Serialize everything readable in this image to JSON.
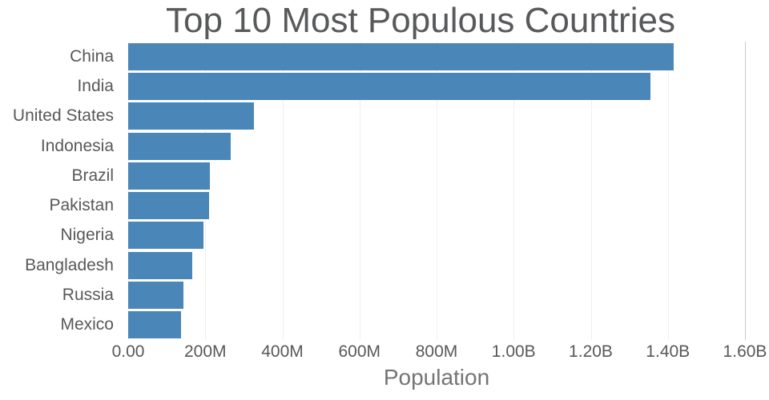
{
  "chart_data": {
    "type": "bar",
    "orientation": "horizontal",
    "title": "Top 10 Most Populous Countries",
    "xlabel": "Population",
    "ylabel": "",
    "xlim": [
      0,
      1600000000
    ],
    "x_tick_labels": [
      "0.00",
      "200M",
      "400M",
      "600M",
      "800M",
      "1.00B",
      "1.20B",
      "1.40B",
      "1.60B"
    ],
    "x_tick_values": [
      0,
      200000000,
      400000000,
      600000000,
      800000000,
      1000000000,
      1200000000,
      1400000000,
      1600000000
    ],
    "categories": [
      "China",
      "India",
      "United States",
      "Indonesia",
      "Brazil",
      "Pakistan",
      "Nigeria",
      "Bangladesh",
      "Russia",
      "Mexico"
    ],
    "values": [
      1415000000,
      1354000000,
      327000000,
      267000000,
      211000000,
      209000000,
      196000000,
      166000000,
      144000000,
      137000000
    ],
    "grid": "vertical gridlines at x ticks, right edge line visible",
    "legend": "none"
  },
  "colors": {
    "bar": "#4a86b8",
    "title_text": "#58595b",
    "axis_text": "#57585a",
    "xlabel_text": "#737476",
    "gridline": "#efefef",
    "gridline_edge": "#c9c9c9",
    "background": "#ffffff"
  }
}
